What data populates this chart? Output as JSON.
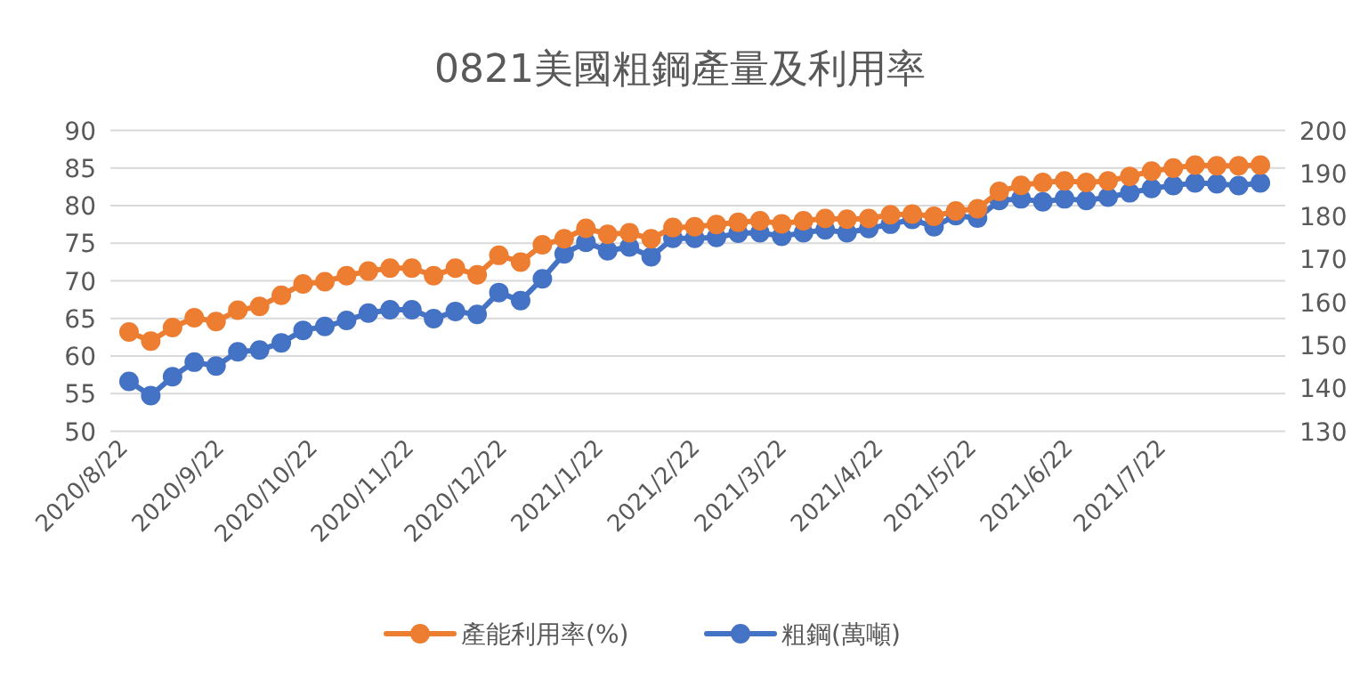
{
  "chart_data": {
    "type": "line",
    "title": "0821美國粗鋼產量及利用率",
    "x": [
      "2020-08-22",
      "2020-08-29",
      "2020-09-05",
      "2020-09-12",
      "2020-09-19",
      "2020-09-26",
      "2020-10-03",
      "2020-10-10",
      "2020-10-17",
      "2020-10-24",
      "2020-10-31",
      "2020-11-07",
      "2020-11-14",
      "2020-11-21",
      "2020-11-28",
      "2020-12-05",
      "2020-12-12",
      "2020-12-19",
      "2020-12-26",
      "2021-01-02",
      "2021-01-09",
      "2021-01-16",
      "2021-01-23",
      "2021-01-30",
      "2021-02-06",
      "2021-02-13",
      "2021-02-20",
      "2021-02-27",
      "2021-03-06",
      "2021-03-13",
      "2021-03-20",
      "2021-03-27",
      "2021-04-03",
      "2021-04-10",
      "2021-04-17",
      "2021-04-24",
      "2021-05-01",
      "2021-05-08",
      "2021-05-15",
      "2021-05-22",
      "2021-05-29",
      "2021-06-05",
      "2021-06-12",
      "2021-06-19",
      "2021-06-26",
      "2021-07-03",
      "2021-07-10",
      "2021-07-17",
      "2021-07-24",
      "2021-07-31",
      "2021-08-07",
      "2021-08-14",
      "2021-08-21"
    ],
    "series": [
      {
        "name": "產能利用率(%)",
        "color": "#ed7d31",
        "values": [
          63.2,
          62.0,
          63.8,
          65.1,
          64.6,
          66.1,
          66.6,
          68.1,
          69.6,
          69.9,
          70.7,
          71.3,
          71.7,
          71.7,
          70.7,
          71.7,
          70.8,
          73.4,
          72.5,
          74.8,
          75.6,
          77.0,
          76.2,
          76.4,
          75.6,
          77.1,
          77.2,
          77.5,
          77.8,
          78.0,
          77.6,
          78.0,
          78.3,
          78.2,
          78.3,
          78.8,
          78.9,
          78.6,
          79.3,
          79.6,
          81.9,
          82.7,
          83.1,
          83.3,
          83.1,
          83.3,
          83.9,
          84.6,
          85.0,
          85.4,
          85.3,
          85.3,
          85.4
        ]
      },
      {
        "name": "粗鋼(萬噸)",
        "color": "#4472c4",
        "axis": "y2",
        "values": [
          141.6,
          138.3,
          142.7,
          146.1,
          145.2,
          148.5,
          148.9,
          150.6,
          153.5,
          154.4,
          155.8,
          157.5,
          158.3,
          158.3,
          156.2,
          157.9,
          157.2,
          162.3,
          160.4,
          165.5,
          171.3,
          174.0,
          172.0,
          172.9,
          170.6,
          174.9,
          174.9,
          175.1,
          176.1,
          176.2,
          175.4,
          176.2,
          176.9,
          176.2,
          177.2,
          178.2,
          179.3,
          177.6,
          180.2,
          179.6,
          183.7,
          184.1,
          183.4,
          184.1,
          183.7,
          184.5,
          185.5,
          186.5,
          187.2,
          187.8,
          187.6,
          187.2,
          187.8
        ]
      }
    ],
    "xlim": [
      "2020-08-16",
      "2021-08-29"
    ],
    "xticks": [
      {
        "value": "2020-08-22",
        "label": "2020/8/22"
      },
      {
        "value": "2020-09-22",
        "label": "2020/9/22"
      },
      {
        "value": "2020-10-22",
        "label": "2020/10/22"
      },
      {
        "value": "2020-11-22",
        "label": "2020/11/22"
      },
      {
        "value": "2020-12-22",
        "label": "2020/12/22"
      },
      {
        "value": "2021-01-22",
        "label": "2021/1/22"
      },
      {
        "value": "2021-02-22",
        "label": "2021/2/22"
      },
      {
        "value": "2021-03-22",
        "label": "2021/3/22"
      },
      {
        "value": "2021-04-22",
        "label": "2021/4/22"
      },
      {
        "value": "2021-05-22",
        "label": "2021/5/22"
      },
      {
        "value": "2021-06-22",
        "label": "2021/6/22"
      },
      {
        "value": "2021-07-22",
        "label": "2021/7/22"
      }
    ],
    "ylim": [
      50,
      90
    ],
    "yticks": [
      50,
      55,
      60,
      65,
      70,
      75,
      80,
      85,
      90
    ],
    "y2lim": [
      130,
      200
    ],
    "y2ticks": [
      130,
      140,
      150,
      160,
      170,
      180,
      190,
      200
    ],
    "grid": "y",
    "legend": "bottom",
    "marker": "circle",
    "line_style": "solid"
  }
}
